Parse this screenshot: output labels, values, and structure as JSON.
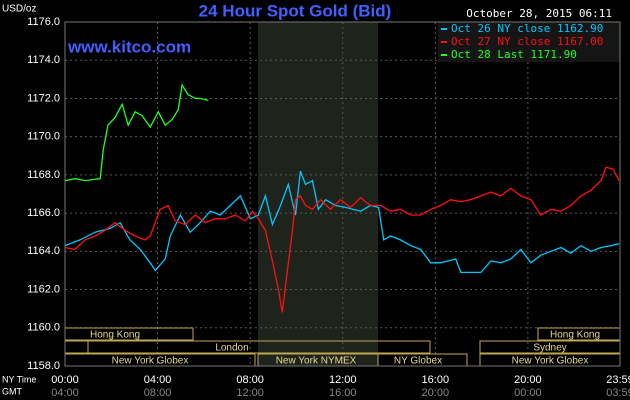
{
  "chart_data": {
    "type": "line",
    "title": "24 Hour Spot Gold (Bid)",
    "subtitle": "www.kitco.com",
    "ylabel": "USD/oz",
    "timestamp": "October 28, 2015 06:11",
    "xlim": [
      0,
      23.98
    ],
    "ylim": [
      1158,
      1176
    ],
    "xticks": [
      {
        "value": 0,
        "label": "00:00"
      },
      {
        "value": 4,
        "label": "04:00"
      },
      {
        "value": 8,
        "label": "08:00"
      },
      {
        "value": 12,
        "label": "12:00"
      },
      {
        "value": 16,
        "label": "16:00"
      },
      {
        "value": 20,
        "label": "20:00"
      },
      {
        "value": 23.98,
        "label": "23:59"
      }
    ],
    "gmt_ticks": [
      "04:00",
      "08:00",
      "12:00",
      "16:00",
      "20:00",
      "00:00",
      "03:59"
    ],
    "xrow_labels": [
      "NY Time",
      "GMT"
    ],
    "yticks": [
      {
        "value": 1158,
        "label": "1158.0"
      },
      {
        "value": 1160,
        "label": "1160.0"
      },
      {
        "value": 1162,
        "label": "1162.0"
      },
      {
        "value": 1164,
        "label": "1164.0"
      },
      {
        "value": 1166,
        "label": "1166.0"
      },
      {
        "value": 1168,
        "label": "1168.0"
      },
      {
        "value": 1170,
        "label": "1170.0"
      },
      {
        "value": 1172,
        "label": "1172.0"
      },
      {
        "value": 1174,
        "label": "1174.0"
      },
      {
        "value": 1176,
        "label": "1176.0"
      }
    ],
    "grid": true,
    "legend": "upper right",
    "sessions": [
      "Hong Kong",
      "Hong Kong",
      "London",
      "Sydney",
      "New York Globex",
      "New York NYMEX",
      "NY Globex",
      "New York Globex"
    ],
    "series": [
      {
        "name": "Oct 26 NY close 1162.90",
        "color": "#00c8ff",
        "x": [
          0,
          0.65,
          1.3,
          1.95,
          2.38,
          2.81,
          3.25,
          3.68,
          3.9,
          4.33,
          4.55,
          4.98,
          5.41,
          5.84,
          6.28,
          6.71,
          7.14,
          7.58,
          8.01,
          8.35,
          8.66,
          8.96,
          9.31,
          9.65,
          9.96,
          10.17,
          10.39,
          10.69,
          10.95,
          11.26,
          11.69,
          12.12,
          12.77,
          13.2,
          13.55,
          13.77,
          14.07,
          14.5,
          14.94,
          15.37,
          15.8,
          16.23,
          16.88,
          17.1,
          17.97,
          18.4,
          18.83,
          19.26,
          19.7,
          20.13,
          20.56,
          21.0,
          21.43,
          21.86,
          22.29,
          22.73,
          23.16,
          23.59,
          23.94
        ],
        "values": [
          1164.3,
          1164.6,
          1165.0,
          1165.2,
          1165.5,
          1164.6,
          1164.1,
          1163.4,
          1163.0,
          1163.6,
          1164.8,
          1165.9,
          1165.0,
          1165.5,
          1166.1,
          1165.9,
          1166.4,
          1166.9,
          1165.7,
          1165.9,
          1166.9,
          1165.4,
          1166.4,
          1167.5,
          1165.9,
          1168.2,
          1167.5,
          1167.7,
          1166.2,
          1166.7,
          1166.4,
          1166.3,
          1166.1,
          1166.4,
          1166.3,
          1164.6,
          1164.8,
          1164.6,
          1164.3,
          1164.1,
          1163.4,
          1163.4,
          1163.6,
          1162.9,
          1162.9,
          1163.5,
          1163.4,
          1163.6,
          1164.1,
          1163.4,
          1163.8,
          1164.0,
          1164.2,
          1163.9,
          1164.3,
          1164.0,
          1164.2,
          1164.3,
          1164.4
        ]
      },
      {
        "name": "Oct 27 NY close 1167.00",
        "color": "#ff1010",
        "x": [
          0,
          0.43,
          0.87,
          1.3,
          1.73,
          2.16,
          2.6,
          3.03,
          3.46,
          3.68,
          4.11,
          4.46,
          4.76,
          5.19,
          5.63,
          6.06,
          6.49,
          6.93,
          7.36,
          7.79,
          8.1,
          8.35,
          8.66,
          8.96,
          9.22,
          9.39,
          9.61,
          9.83,
          9.96,
          10.17,
          10.39,
          10.69,
          11.04,
          11.47,
          11.9,
          12.34,
          12.77,
          13.2,
          13.64,
          14.07,
          14.5,
          14.94,
          15.37,
          15.8,
          16.23,
          16.67,
          17.1,
          17.53,
          17.97,
          18.4,
          18.83,
          19.26,
          19.7,
          20.13,
          20.56,
          21.0,
          21.43,
          21.86,
          22.29,
          22.73,
          23.16,
          23.38,
          23.68,
          23.94
        ],
        "values": [
          1164.2,
          1164.1,
          1164.6,
          1164.8,
          1165.1,
          1165.5,
          1165.1,
          1164.8,
          1164.6,
          1164.8,
          1166.2,
          1166.4,
          1165.6,
          1165.4,
          1165.9,
          1165.5,
          1165.7,
          1165.7,
          1165.9,
          1165.6,
          1166.1,
          1165.7,
          1165.1,
          1163.5,
          1162.0,
          1160.8,
          1163.0,
          1165.1,
          1166.7,
          1166.9,
          1166.4,
          1166.2,
          1166.7,
          1166.2,
          1166.7,
          1166.3,
          1166.8,
          1166.4,
          1166.4,
          1166.1,
          1166.2,
          1165.9,
          1165.9,
          1166.2,
          1166.4,
          1166.7,
          1166.6,
          1166.7,
          1166.9,
          1167.1,
          1166.9,
          1167.3,
          1166.9,
          1166.7,
          1165.9,
          1166.2,
          1166.1,
          1166.4,
          1166.9,
          1167.2,
          1167.7,
          1168.4,
          1168.3,
          1167.7
        ]
      },
      {
        "name": "Oct 28 Last 1171.90",
        "color": "#20ff20",
        "x": [
          0,
          0.43,
          0.87,
          1.52,
          1.65,
          1.86,
          2.16,
          2.47,
          2.73,
          3.03,
          3.33,
          3.68,
          4.03,
          4.33,
          4.63,
          4.89,
          5.06,
          5.32,
          5.63,
          5.84,
          6.19
        ],
        "values": [
          1167.7,
          1167.8,
          1167.7,
          1167.8,
          1169.3,
          1170.6,
          1171.0,
          1171.7,
          1170.6,
          1171.3,
          1171.1,
          1170.5,
          1171.3,
          1170.6,
          1170.9,
          1171.4,
          1172.7,
          1172.2,
          1172.0,
          1172.0,
          1171.9
        ]
      }
    ]
  }
}
